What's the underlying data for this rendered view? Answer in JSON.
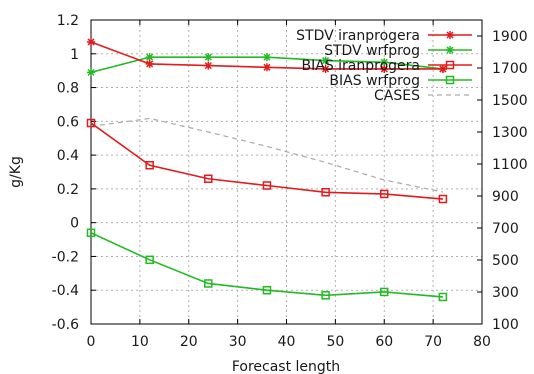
{
  "chart_data": {
    "type": "line",
    "title": "",
    "xlabel": "Forecast length",
    "ylabel": "g/Kg",
    "y2label": "",
    "xlim": [
      0,
      80
    ],
    "ylim": [
      -0.6,
      1.2
    ],
    "y2lim": [
      100,
      2000
    ],
    "grid": true,
    "legend_position": "top-right",
    "x_ticks": [
      0,
      10,
      20,
      30,
      40,
      50,
      60,
      70,
      80
    ],
    "x_tick_labels": [
      "0",
      "10",
      "20",
      "30",
      "40",
      "50",
      "60",
      "70",
      "80"
    ],
    "y_ticks": [
      -0.6,
      -0.4,
      -0.2,
      0,
      0.2,
      0.4,
      0.6,
      0.8,
      1,
      1.2
    ],
    "y_tick_labels": [
      "-0.6",
      "-0.4",
      "-0.2",
      "0",
      "0.2",
      "0.4",
      "0.6",
      "0.8",
      "1",
      "1.2"
    ],
    "y2_ticks": [
      100,
      300,
      500,
      700,
      900,
      1100,
      1300,
      1500,
      1700,
      1900
    ],
    "y2_tick_labels": [
      "100",
      "300",
      "500",
      "700",
      "900",
      "1100",
      "1300",
      "1500",
      "1700",
      "1900"
    ],
    "x": [
      0,
      12,
      24,
      36,
      48,
      60,
      72
    ],
    "series": [
      {
        "name": "STDV iranprogera",
        "axis": "left",
        "color": "#e41a1c",
        "marker": "star",
        "dash": "",
        "values": [
          1.07,
          0.94,
          0.93,
          0.92,
          0.91,
          0.91,
          0.91
        ]
      },
      {
        "name": "STDV wrfprog",
        "axis": "left",
        "color": "#22bb22",
        "marker": "star",
        "dash": "",
        "values": [
          0.89,
          0.98,
          0.98,
          0.98,
          0.96,
          0.95,
          0.91
        ]
      },
      {
        "name": "BIAS iranprogera",
        "axis": "left",
        "color": "#e41a1c",
        "marker": "square",
        "dash": "",
        "values": [
          0.59,
          0.34,
          0.26,
          0.22,
          0.18,
          0.17,
          0.14
        ]
      },
      {
        "name": "BIAS wrfprog",
        "axis": "left",
        "color": "#22bb22",
        "marker": "square",
        "dash": "",
        "values": [
          -0.06,
          -0.22,
          -0.36,
          -0.4,
          -0.43,
          -0.41,
          -0.44
        ]
      },
      {
        "name": "CASES",
        "axis": "right",
        "color": "#aaaaaa",
        "marker": "none",
        "dash": "5,4",
        "values": [
          1335,
          1385,
          1300,
          1210,
          1110,
          1000,
          925
        ]
      }
    ]
  }
}
